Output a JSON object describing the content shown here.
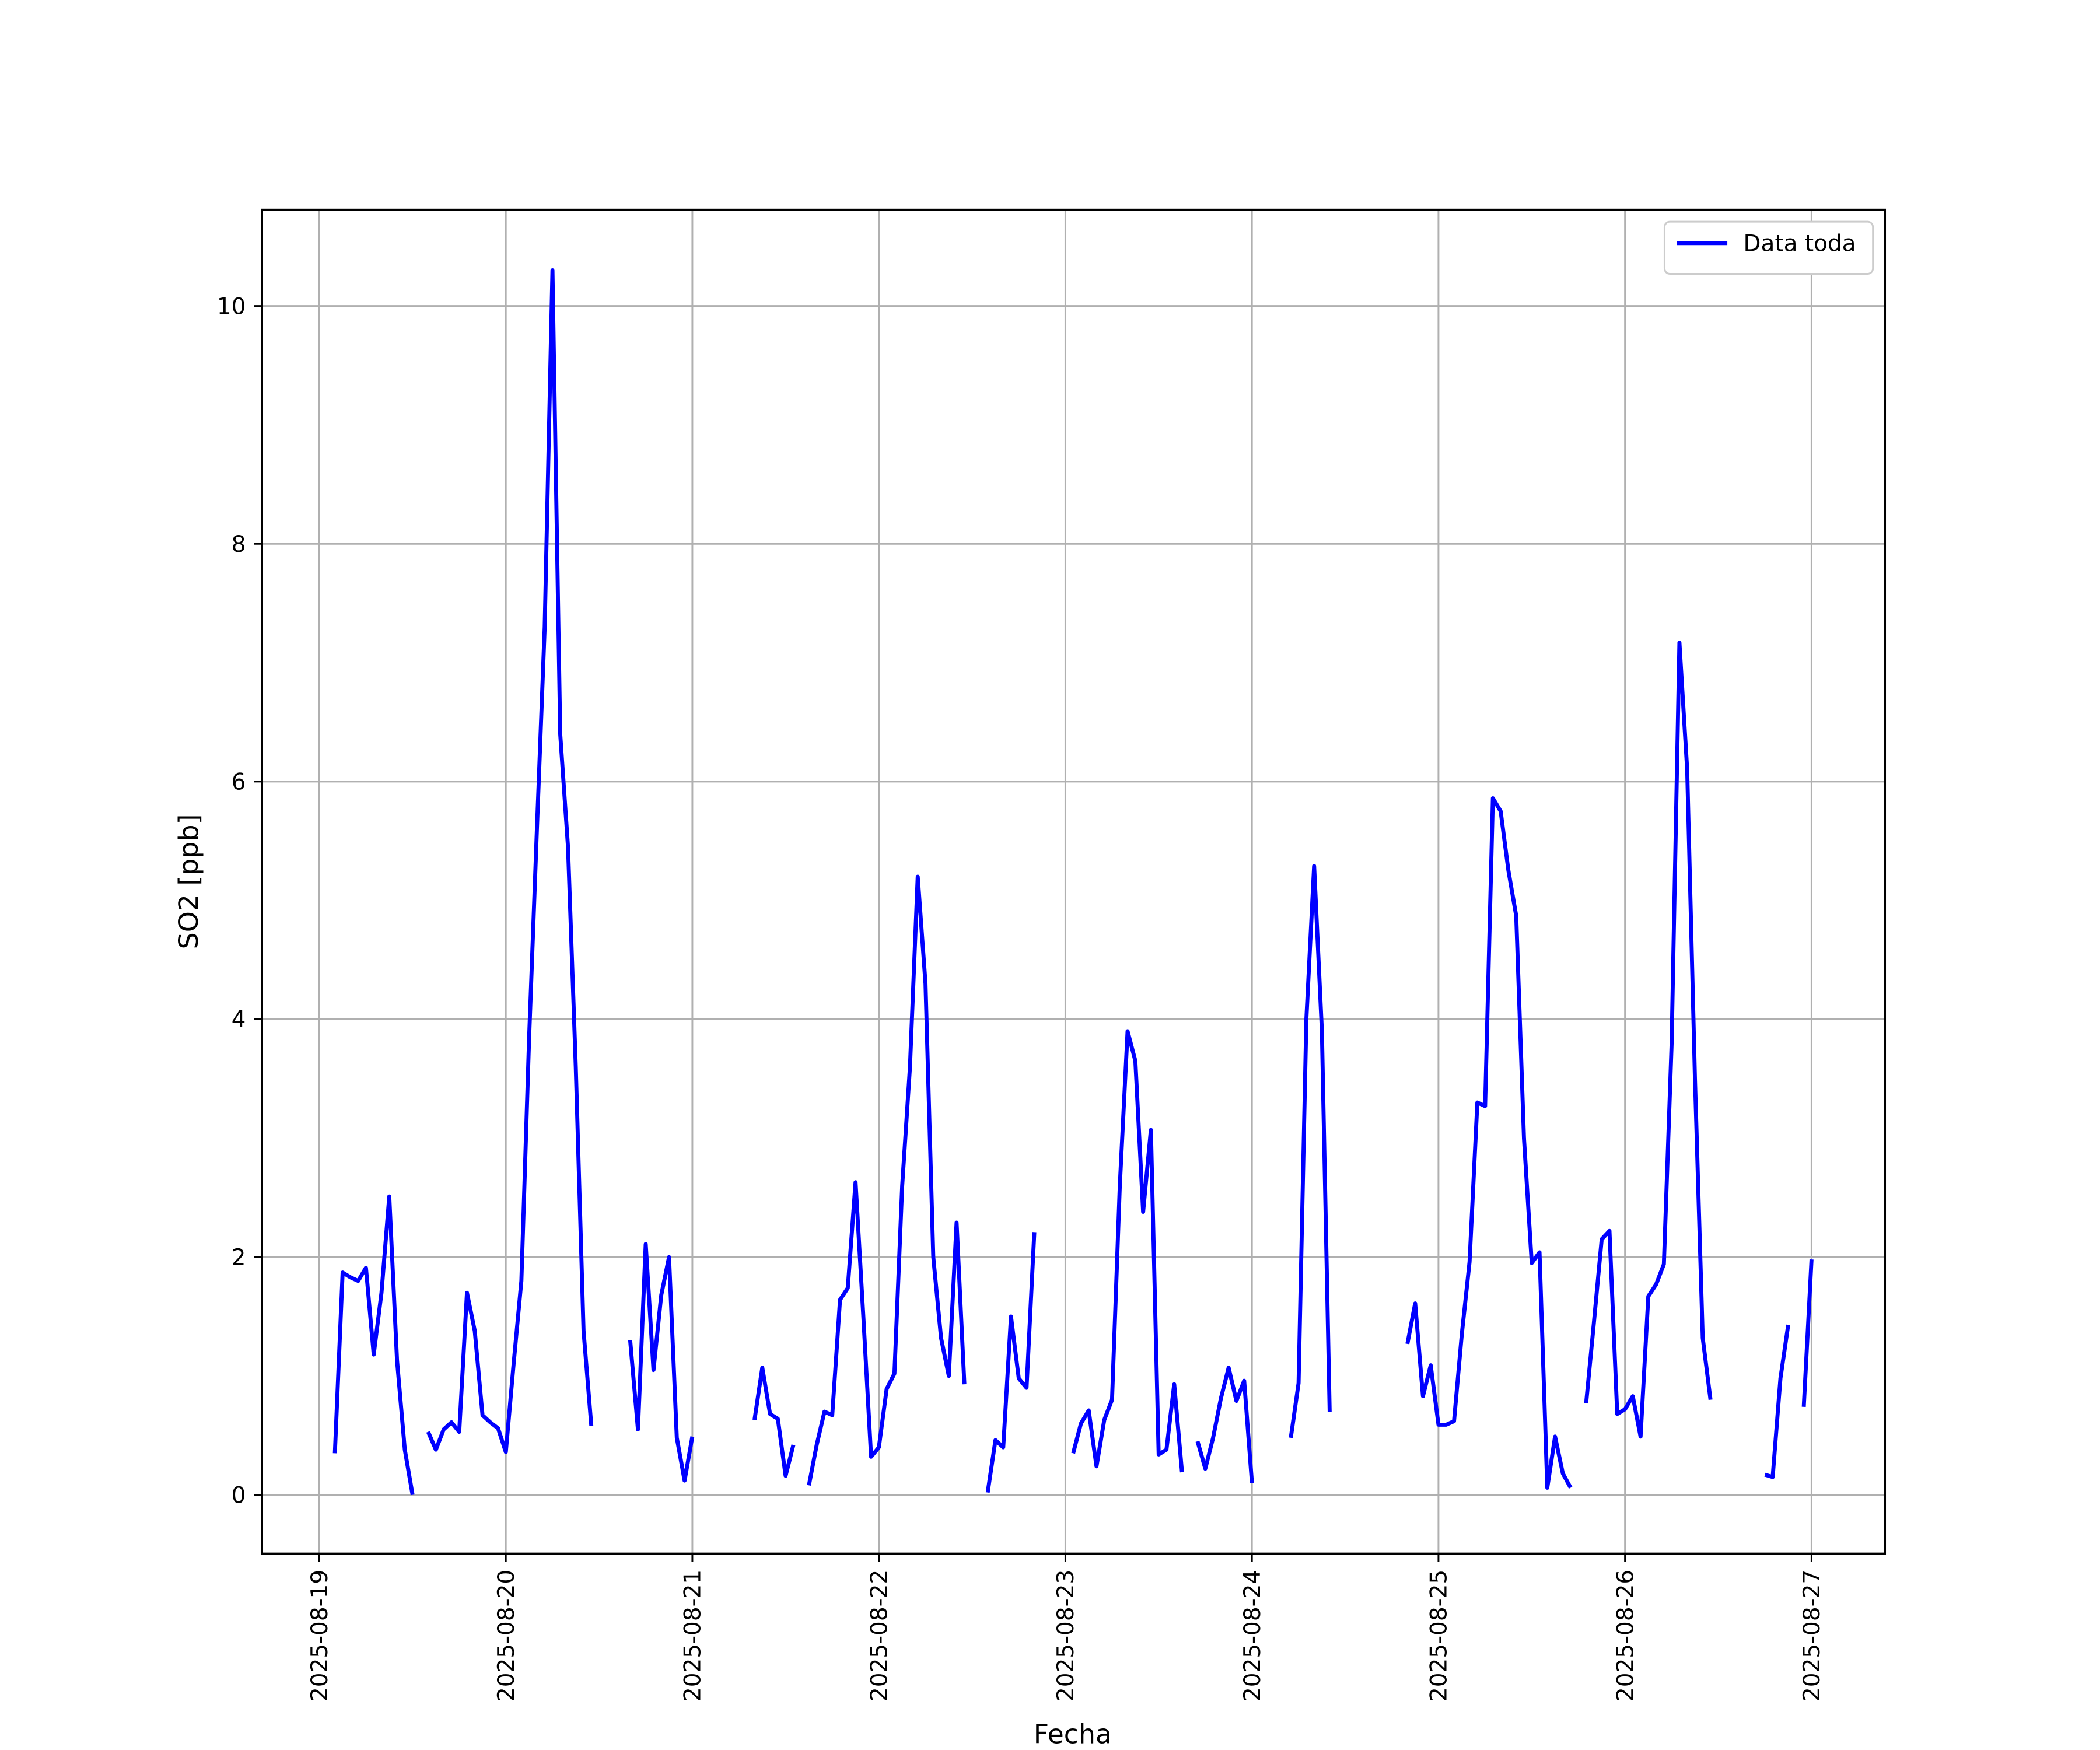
{
  "chart_data": {
    "type": "line",
    "xlabel": "Fecha",
    "ylabel": "SO2 [ppb]",
    "x": [
      "2025-08-19T02:00",
      "2025-08-19T03:00",
      "2025-08-19T04:00",
      "2025-08-19T05:00",
      "2025-08-19T06:00",
      "2025-08-19T07:00",
      "2025-08-19T08:00",
      "2025-08-19T09:00",
      "2025-08-19T10:00",
      "2025-08-19T11:00",
      "2025-08-19T12:00",
      "2025-08-19T13:00",
      "2025-08-19T14:00",
      "2025-08-19T15:00",
      "2025-08-19T16:00",
      "2025-08-19T17:00",
      "2025-08-19T18:00",
      "2025-08-19T19:00",
      "2025-08-19T20:00",
      "2025-08-19T21:00",
      "2025-08-19T22:00",
      "2025-08-19T23:00",
      "2025-08-20T00:00",
      "2025-08-20T01:00",
      "2025-08-20T02:00",
      "2025-08-20T03:00",
      "2025-08-20T04:00",
      "2025-08-20T05:00",
      "2025-08-20T06:00",
      "2025-08-20T07:00",
      "2025-08-20T08:00",
      "2025-08-20T09:00",
      "2025-08-20T10:00",
      "2025-08-20T11:00",
      "2025-08-20T12:00",
      "2025-08-20T16:00",
      "2025-08-20T17:00",
      "2025-08-20T18:00",
      "2025-08-20T19:00",
      "2025-08-20T20:00",
      "2025-08-20T21:00",
      "2025-08-20T22:00",
      "2025-08-20T23:00",
      "2025-08-21T00:00",
      "2025-08-21T01:00",
      "2025-08-21T08:00",
      "2025-08-21T09:00",
      "2025-08-21T10:00",
      "2025-08-21T11:00",
      "2025-08-21T12:00",
      "2025-08-21T13:00",
      "2025-08-21T14:00",
      "2025-08-21T15:00",
      "2025-08-21T16:00",
      "2025-08-21T17:00",
      "2025-08-21T18:00",
      "2025-08-21T19:00",
      "2025-08-21T20:00",
      "2025-08-21T21:00",
      "2025-08-21T22:00",
      "2025-08-21T23:00",
      "2025-08-22T00:00",
      "2025-08-22T01:00",
      "2025-08-22T02:00",
      "2025-08-22T03:00",
      "2025-08-22T04:00",
      "2025-08-22T05:00",
      "2025-08-22T06:00",
      "2025-08-22T07:00",
      "2025-08-22T08:00",
      "2025-08-22T09:00",
      "2025-08-22T10:00",
      "2025-08-22T11:00",
      "2025-08-22T12:00",
      "2025-08-22T14:00",
      "2025-08-22T15:00",
      "2025-08-22T16:00",
      "2025-08-22T17:00",
      "2025-08-22T18:00",
      "2025-08-22T19:00",
      "2025-08-22T20:00",
      "2025-08-22T21:00",
      "2025-08-23T01:00",
      "2025-08-23T02:00",
      "2025-08-23T03:00",
      "2025-08-23T04:00",
      "2025-08-23T05:00",
      "2025-08-23T06:00",
      "2025-08-23T07:00",
      "2025-08-23T08:00",
      "2025-08-23T09:00",
      "2025-08-23T10:00",
      "2025-08-23T11:00",
      "2025-08-23T12:00",
      "2025-08-23T13:00",
      "2025-08-23T14:00",
      "2025-08-23T15:00",
      "2025-08-23T16:00",
      "2025-08-23T17:00",
      "2025-08-23T18:00",
      "2025-08-23T19:00",
      "2025-08-23T20:00",
      "2025-08-23T21:00",
      "2025-08-23T22:00",
      "2025-08-23T23:00",
      "2025-08-24T00:00",
      "2025-08-24T01:00",
      "2025-08-24T05:00",
      "2025-08-24T06:00",
      "2025-08-24T07:00",
      "2025-08-24T08:00",
      "2025-08-24T09:00",
      "2025-08-24T10:00",
      "2025-08-24T11:00",
      "2025-08-24T20:00",
      "2025-08-24T21:00",
      "2025-08-24T22:00",
      "2025-08-24T23:00",
      "2025-08-25T00:00",
      "2025-08-25T01:00",
      "2025-08-25T02:00",
      "2025-08-25T03:00",
      "2025-08-25T04:00",
      "2025-08-25T05:00",
      "2025-08-25T06:00",
      "2025-08-25T07:00",
      "2025-08-25T08:00",
      "2025-08-25T09:00",
      "2025-08-25T10:00",
      "2025-08-25T11:00",
      "2025-08-25T12:00",
      "2025-08-25T13:00",
      "2025-08-25T14:00",
      "2025-08-25T15:00",
      "2025-08-25T16:00",
      "2025-08-25T17:00",
      "2025-08-25T18:00",
      "2025-08-25T19:00",
      "2025-08-25T20:00",
      "2025-08-25T21:00",
      "2025-08-25T22:00",
      "2025-08-25T23:00",
      "2025-08-26T00:00",
      "2025-08-26T01:00",
      "2025-08-26T02:00",
      "2025-08-26T03:00",
      "2025-08-26T04:00",
      "2025-08-26T05:00",
      "2025-08-26T06:00",
      "2025-08-26T07:00",
      "2025-08-26T08:00",
      "2025-08-26T09:00",
      "2025-08-26T10:00",
      "2025-08-26T11:00",
      "2025-08-26T12:00",
      "2025-08-26T18:00",
      "2025-08-26T19:00",
      "2025-08-26T20:00",
      "2025-08-26T21:00",
      "2025-08-26T22:00",
      "2025-08-26T23:00",
      "2025-08-27T00:00"
    ],
    "series": [
      {
        "name": "Data toda",
        "color": "#0000ff",
        "values": [
          0.35,
          1.87,
          1.83,
          1.8,
          1.91,
          1.18,
          1.7,
          2.51,
          1.13,
          0.38,
          0.0,
          null,
          0.53,
          0.38,
          0.55,
          0.61,
          0.53,
          1.7,
          1.38,
          0.67,
          0.61,
          0.56,
          0.36,
          1.1,
          1.8,
          3.85,
          5.6,
          7.3,
          10.3,
          6.4,
          5.45,
          3.6,
          1.38,
          0.58,
          null,
          1.3,
          0.55,
          2.11,
          1.05,
          1.68,
          2.0,
          0.48,
          0.12,
          0.49,
          null,
          0.63,
          1.07,
          0.68,
          0.64,
          0.16,
          0.42,
          null,
          0.08,
          0.42,
          0.7,
          0.67,
          1.64,
          1.74,
          2.63,
          1.5,
          0.32,
          0.4,
          0.89,
          1.02,
          2.6,
          3.6,
          5.2,
          4.3,
          2.0,
          1.32,
          1.0,
          2.29,
          0.93,
          null,
          0.02,
          0.46,
          0.4,
          1.5,
          0.98,
          0.9,
          2.21,
          null,
          0.35,
          0.6,
          0.71,
          0.24,
          0.63,
          0.8,
          2.6,
          3.9,
          3.65,
          2.38,
          3.07,
          0.34,
          0.38,
          0.93,
          0.19,
          null,
          0.45,
          0.22,
          0.48,
          0.81,
          1.07,
          0.79,
          0.96,
          0.1,
          null,
          0.48,
          0.94,
          4.0,
          5.29,
          3.9,
          0.7,
          null,
          1.27,
          1.61,
          0.83,
          1.09,
          0.59,
          0.59,
          0.62,
          1.35,
          1.96,
          3.3,
          3.27,
          5.86,
          5.75,
          5.25,
          4.87,
          3.0,
          1.95,
          2.04,
          0.06,
          0.49,
          0.18,
          0.06,
          null,
          0.77,
          1.45,
          2.15,
          2.22,
          0.68,
          0.72,
          0.83,
          0.49,
          1.67,
          1.77,
          1.94,
          3.8,
          7.17,
          6.1,
          3.5,
          1.32,
          0.8,
          null,
          0.17,
          0.15,
          0.98,
          1.43,
          null,
          0.74,
          1.98
        ]
      }
    ],
    "xlim": [
      "2025-08-18T16:36",
      "2025-08-27T09:27"
    ],
    "xticks": [
      "2025-08-19",
      "2025-08-20",
      "2025-08-21",
      "2025-08-22",
      "2025-08-23",
      "2025-08-24",
      "2025-08-25",
      "2025-08-26",
      "2025-08-27"
    ],
    "ylim": [
      -0.494,
      10.81
    ],
    "yticks": [
      0,
      2,
      4,
      6,
      8,
      10
    ],
    "grid": true,
    "legend": "upper right"
  }
}
